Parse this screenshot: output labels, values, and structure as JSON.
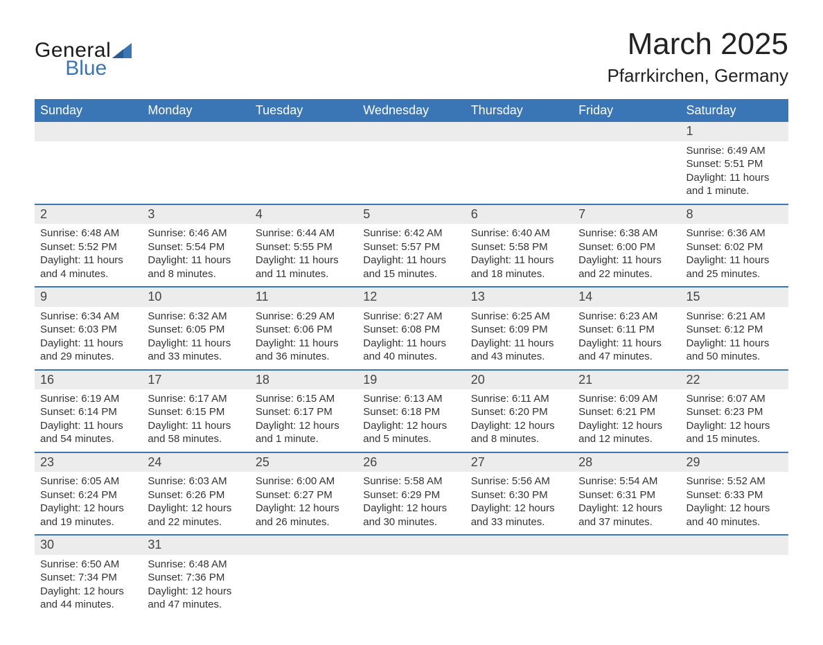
{
  "logo": {
    "word1": "General",
    "word2": "Blue",
    "brand_color": "#3a76b5",
    "text_color": "#1a1a1a"
  },
  "header": {
    "title": "March 2025",
    "location": "Pfarrkirchen, Germany"
  },
  "colors": {
    "header_bg": "#3a76b5",
    "header_fg": "#ffffff",
    "daynum_bg": "#ececec",
    "row_border": "#3a76b5",
    "page_bg": "#ffffff",
    "text": "#333333"
  },
  "typography": {
    "title_fontsize": 44,
    "location_fontsize": 26,
    "weekday_fontsize": 18,
    "daynum_fontsize": 18,
    "body_fontsize": 15,
    "font_family": "Arial, Helvetica, sans-serif"
  },
  "calendar": {
    "type": "table",
    "weekdays": [
      "Sunday",
      "Monday",
      "Tuesday",
      "Wednesday",
      "Thursday",
      "Friday",
      "Saturday"
    ],
    "columns": 7,
    "weeks": [
      [
        null,
        null,
        null,
        null,
        null,
        null,
        {
          "day": "1",
          "sunrise": "Sunrise: 6:49 AM",
          "sunset": "Sunset: 5:51 PM",
          "daylight1": "Daylight: 11 hours",
          "daylight2": "and 1 minute."
        }
      ],
      [
        {
          "day": "2",
          "sunrise": "Sunrise: 6:48 AM",
          "sunset": "Sunset: 5:52 PM",
          "daylight1": "Daylight: 11 hours",
          "daylight2": "and 4 minutes."
        },
        {
          "day": "3",
          "sunrise": "Sunrise: 6:46 AM",
          "sunset": "Sunset: 5:54 PM",
          "daylight1": "Daylight: 11 hours",
          "daylight2": "and 8 minutes."
        },
        {
          "day": "4",
          "sunrise": "Sunrise: 6:44 AM",
          "sunset": "Sunset: 5:55 PM",
          "daylight1": "Daylight: 11 hours",
          "daylight2": "and 11 minutes."
        },
        {
          "day": "5",
          "sunrise": "Sunrise: 6:42 AM",
          "sunset": "Sunset: 5:57 PM",
          "daylight1": "Daylight: 11 hours",
          "daylight2": "and 15 minutes."
        },
        {
          "day": "6",
          "sunrise": "Sunrise: 6:40 AM",
          "sunset": "Sunset: 5:58 PM",
          "daylight1": "Daylight: 11 hours",
          "daylight2": "and 18 minutes."
        },
        {
          "day": "7",
          "sunrise": "Sunrise: 6:38 AM",
          "sunset": "Sunset: 6:00 PM",
          "daylight1": "Daylight: 11 hours",
          "daylight2": "and 22 minutes."
        },
        {
          "day": "8",
          "sunrise": "Sunrise: 6:36 AM",
          "sunset": "Sunset: 6:02 PM",
          "daylight1": "Daylight: 11 hours",
          "daylight2": "and 25 minutes."
        }
      ],
      [
        {
          "day": "9",
          "sunrise": "Sunrise: 6:34 AM",
          "sunset": "Sunset: 6:03 PM",
          "daylight1": "Daylight: 11 hours",
          "daylight2": "and 29 minutes."
        },
        {
          "day": "10",
          "sunrise": "Sunrise: 6:32 AM",
          "sunset": "Sunset: 6:05 PM",
          "daylight1": "Daylight: 11 hours",
          "daylight2": "and 33 minutes."
        },
        {
          "day": "11",
          "sunrise": "Sunrise: 6:29 AM",
          "sunset": "Sunset: 6:06 PM",
          "daylight1": "Daylight: 11 hours",
          "daylight2": "and 36 minutes."
        },
        {
          "day": "12",
          "sunrise": "Sunrise: 6:27 AM",
          "sunset": "Sunset: 6:08 PM",
          "daylight1": "Daylight: 11 hours",
          "daylight2": "and 40 minutes."
        },
        {
          "day": "13",
          "sunrise": "Sunrise: 6:25 AM",
          "sunset": "Sunset: 6:09 PM",
          "daylight1": "Daylight: 11 hours",
          "daylight2": "and 43 minutes."
        },
        {
          "day": "14",
          "sunrise": "Sunrise: 6:23 AM",
          "sunset": "Sunset: 6:11 PM",
          "daylight1": "Daylight: 11 hours",
          "daylight2": "and 47 minutes."
        },
        {
          "day": "15",
          "sunrise": "Sunrise: 6:21 AM",
          "sunset": "Sunset: 6:12 PM",
          "daylight1": "Daylight: 11 hours",
          "daylight2": "and 50 minutes."
        }
      ],
      [
        {
          "day": "16",
          "sunrise": "Sunrise: 6:19 AM",
          "sunset": "Sunset: 6:14 PM",
          "daylight1": "Daylight: 11 hours",
          "daylight2": "and 54 minutes."
        },
        {
          "day": "17",
          "sunrise": "Sunrise: 6:17 AM",
          "sunset": "Sunset: 6:15 PM",
          "daylight1": "Daylight: 11 hours",
          "daylight2": "and 58 minutes."
        },
        {
          "day": "18",
          "sunrise": "Sunrise: 6:15 AM",
          "sunset": "Sunset: 6:17 PM",
          "daylight1": "Daylight: 12 hours",
          "daylight2": "and 1 minute."
        },
        {
          "day": "19",
          "sunrise": "Sunrise: 6:13 AM",
          "sunset": "Sunset: 6:18 PM",
          "daylight1": "Daylight: 12 hours",
          "daylight2": "and 5 minutes."
        },
        {
          "day": "20",
          "sunrise": "Sunrise: 6:11 AM",
          "sunset": "Sunset: 6:20 PM",
          "daylight1": "Daylight: 12 hours",
          "daylight2": "and 8 minutes."
        },
        {
          "day": "21",
          "sunrise": "Sunrise: 6:09 AM",
          "sunset": "Sunset: 6:21 PM",
          "daylight1": "Daylight: 12 hours",
          "daylight2": "and 12 minutes."
        },
        {
          "day": "22",
          "sunrise": "Sunrise: 6:07 AM",
          "sunset": "Sunset: 6:23 PM",
          "daylight1": "Daylight: 12 hours",
          "daylight2": "and 15 minutes."
        }
      ],
      [
        {
          "day": "23",
          "sunrise": "Sunrise: 6:05 AM",
          "sunset": "Sunset: 6:24 PM",
          "daylight1": "Daylight: 12 hours",
          "daylight2": "and 19 minutes."
        },
        {
          "day": "24",
          "sunrise": "Sunrise: 6:03 AM",
          "sunset": "Sunset: 6:26 PM",
          "daylight1": "Daylight: 12 hours",
          "daylight2": "and 22 minutes."
        },
        {
          "day": "25",
          "sunrise": "Sunrise: 6:00 AM",
          "sunset": "Sunset: 6:27 PM",
          "daylight1": "Daylight: 12 hours",
          "daylight2": "and 26 minutes."
        },
        {
          "day": "26",
          "sunrise": "Sunrise: 5:58 AM",
          "sunset": "Sunset: 6:29 PM",
          "daylight1": "Daylight: 12 hours",
          "daylight2": "and 30 minutes."
        },
        {
          "day": "27",
          "sunrise": "Sunrise: 5:56 AM",
          "sunset": "Sunset: 6:30 PM",
          "daylight1": "Daylight: 12 hours",
          "daylight2": "and 33 minutes."
        },
        {
          "day": "28",
          "sunrise": "Sunrise: 5:54 AM",
          "sunset": "Sunset: 6:31 PM",
          "daylight1": "Daylight: 12 hours",
          "daylight2": "and 37 minutes."
        },
        {
          "day": "29",
          "sunrise": "Sunrise: 5:52 AM",
          "sunset": "Sunset: 6:33 PM",
          "daylight1": "Daylight: 12 hours",
          "daylight2": "and 40 minutes."
        }
      ],
      [
        {
          "day": "30",
          "sunrise": "Sunrise: 6:50 AM",
          "sunset": "Sunset: 7:34 PM",
          "daylight1": "Daylight: 12 hours",
          "daylight2": "and 44 minutes."
        },
        {
          "day": "31",
          "sunrise": "Sunrise: 6:48 AM",
          "sunset": "Sunset: 7:36 PM",
          "daylight1": "Daylight: 12 hours",
          "daylight2": "and 47 minutes."
        },
        null,
        null,
        null,
        null,
        null
      ]
    ]
  }
}
